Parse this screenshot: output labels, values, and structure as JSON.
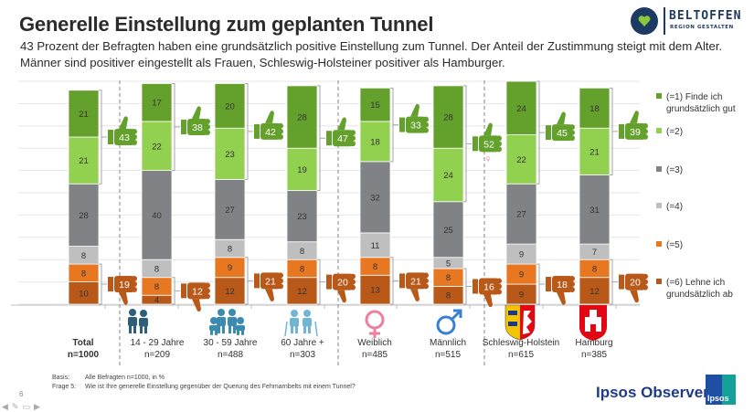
{
  "header": {
    "title": "Generelle Einstellung zum geplanten Tunnel",
    "subtitle_line1": "43 Prozent der Befragten haben eine grundsätzlich positive Einstellung zum Tunnel. Der Anteil der Zustimmung steigt mit dem Alter.",
    "subtitle_line2": "Männer sind positiver eingestellt als Frauen, Schleswig-Holsteiner positiver als Hamburger."
  },
  "logo": {
    "name": "BELTOFFEN",
    "tagline": "REGION GESTALTEN"
  },
  "colors": {
    "c1": "#64a02c",
    "c2": "#92d050",
    "c3": "#808285",
    "c4": "#bfbfbf",
    "c5": "#e87722",
    "c6": "#b8591a",
    "positive": "#64a02c",
    "negative": "#b8591a",
    "female": "#ef7f9e",
    "male": "#3a7fd0",
    "age_icon_dark": "#2e5f7a",
    "age_icon_mid": "#3b8ab0",
    "age_icon_light": "#6fb6d4"
  },
  "chart_data": {
    "type": "bar",
    "stacked": true,
    "title": "Generelle Einstellung zum geplanten Tunnel",
    "unit": "%",
    "categories": [
      "Total",
      "14 - 29 Jahre",
      "30 - 59 Jahre",
      "60 Jahre +",
      "Weiblich",
      "Männlich",
      "Schleswig-Holstein",
      "Hamburg"
    ],
    "category_n": [
      "n=1000",
      "n=209",
      "n=488",
      "n=303",
      "n=485",
      "n=515",
      "n=615",
      "n=385"
    ],
    "category_icons": [
      "",
      "young-couple-icon",
      "family-icon",
      "elderly-couple-icon",
      "female-symbol-icon",
      "male-symbol-icon",
      "schleswig-holstein-crest-icon",
      "hamburg-crest-icon"
    ],
    "group_separators_after": [
      0,
      3,
      5
    ],
    "series": [
      {
        "name": "(=1) Finde ich grundsätzlich gut",
        "color_key": "c1",
        "values": [
          21,
          17,
          20,
          28,
          15,
          28,
          24,
          18
        ]
      },
      {
        "name": "(=2)",
        "color_key": "c2",
        "values": [
          21,
          22,
          23,
          19,
          18,
          24,
          22,
          21
        ]
      },
      {
        "name": "(=3)",
        "color_key": "c3",
        "values": [
          28,
          40,
          27,
          23,
          32,
          25,
          27,
          31
        ]
      },
      {
        "name": "(=4)",
        "color_key": "c4",
        "values": [
          8,
          8,
          8,
          8,
          11,
          5,
          9,
          7
        ]
      },
      {
        "name": "(=5)",
        "color_key": "c5",
        "values": [
          8,
          8,
          9,
          8,
          8,
          8,
          9,
          8
        ]
      },
      {
        "name": "(=6) Lehne ich grundsätzlich ab",
        "color_key": "c6",
        "values": [
          10,
          4,
          12,
          12,
          13,
          8,
          9,
          12
        ]
      }
    ],
    "top2_positive": [
      43,
      38,
      42,
      47,
      33,
      52,
      45,
      39
    ],
    "bottom2_negative": [
      19,
      12,
      21,
      20,
      21,
      16,
      18,
      20
    ],
    "significance_marker": {
      "category_index": 5,
      "symbol": "♀",
      "note": "significant vs. female"
    },
    "legend": [
      {
        "line1": "(=1) Finde ich",
        "line2": "grundsätzlich gut",
        "color_key": "c1"
      },
      {
        "line1": "(=2)",
        "line2": "",
        "color_key": "c2"
      },
      {
        "line1": "(=3)",
        "line2": "",
        "color_key": "c3"
      },
      {
        "line1": "(=4)",
        "line2": "",
        "color_key": "c4"
      },
      {
        "line1": "(=5)",
        "line2": "",
        "color_key": "c5"
      },
      {
        "line1": "(=6) Lehne ich",
        "line2": "grundsätzlich ab",
        "color_key": "c6"
      }
    ],
    "legend_position": "right",
    "grid": true,
    "ylim": [
      0,
      100
    ]
  },
  "footer": {
    "basis_label": "Basis:",
    "basis_text": "Alle Befragten n=1000, in %",
    "question_label": "Frage 5:",
    "question_text": "Wie ist Ihre generelle Einstellung gegenüber der Querung des Fehmarnbelts mit einem Tunnel?",
    "page_number": "6",
    "brand": "Ipsos Observer",
    "brand_logo_text": "Ipsos"
  }
}
